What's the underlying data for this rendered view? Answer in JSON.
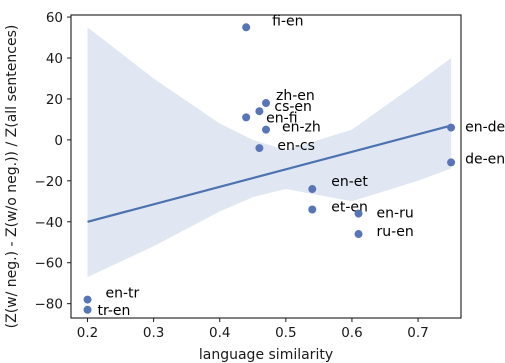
{
  "chart_data": {
    "type": "scatter",
    "title": "",
    "xlabel": "language similarity",
    "ylabel": "(Z(w/ neg.) - Z(w/o neg.)) / Z(all sentences)",
    "xlim": [
      0.175,
      0.765
    ],
    "ylim": [
      -87,
      61
    ],
    "xticks": [
      0.2,
      0.3,
      0.4,
      0.5,
      0.6,
      0.7
    ],
    "xtick_labels": [
      "0.2",
      "0.3",
      "0.4",
      "0.5",
      "0.6",
      "0.7"
    ],
    "yticks": [
      -80,
      -60,
      -40,
      -20,
      0,
      20,
      40,
      60
    ],
    "ytick_labels": [
      "−80",
      "−60",
      "−40",
      "−20",
      "0",
      "20",
      "40",
      "60"
    ],
    "grid": false,
    "points": [
      {
        "label": "fi-en",
        "x": 0.44,
        "y": 55
      },
      {
        "label": "zh-en",
        "x": 0.47,
        "y": 18
      },
      {
        "label": "cs-en",
        "x": 0.46,
        "y": 14
      },
      {
        "label": "en-fi",
        "x": 0.44,
        "y": 11
      },
      {
        "label": "en-zh",
        "x": 0.47,
        "y": 5
      },
      {
        "label": "en-cs",
        "x": 0.46,
        "y": -4
      },
      {
        "label": "en-de",
        "x": 0.75,
        "y": 6
      },
      {
        "label": "de-en",
        "x": 0.75,
        "y": -11
      },
      {
        "label": "en-et",
        "x": 0.54,
        "y": -24
      },
      {
        "label": "et-en",
        "x": 0.54,
        "y": -34
      },
      {
        "label": "en-ru",
        "x": 0.61,
        "y": -36
      },
      {
        "label": "ru-en",
        "x": 0.61,
        "y": -46
      },
      {
        "label": "en-tr",
        "x": 0.2,
        "y": -78
      },
      {
        "label": "tr-en",
        "x": 0.2,
        "y": -83
      }
    ],
    "regression": {
      "x": [
        0.2,
        0.75
      ],
      "y": [
        -40,
        7
      ]
    },
    "confidence_band": {
      "x": [
        0.2,
        0.3,
        0.4,
        0.45,
        0.5,
        0.6,
        0.7,
        0.75
      ],
      "upper": [
        55,
        30,
        8,
        0,
        -5,
        5,
        28,
        40
      ],
      "lower": [
        -67,
        -52,
        -35,
        -28,
        -24,
        -30,
        -20,
        -14
      ]
    },
    "colors": {
      "points": "#5875b8",
      "line": "#4c72b0",
      "band": "#dde4f2",
      "axes": "#1a1a1a"
    }
  }
}
